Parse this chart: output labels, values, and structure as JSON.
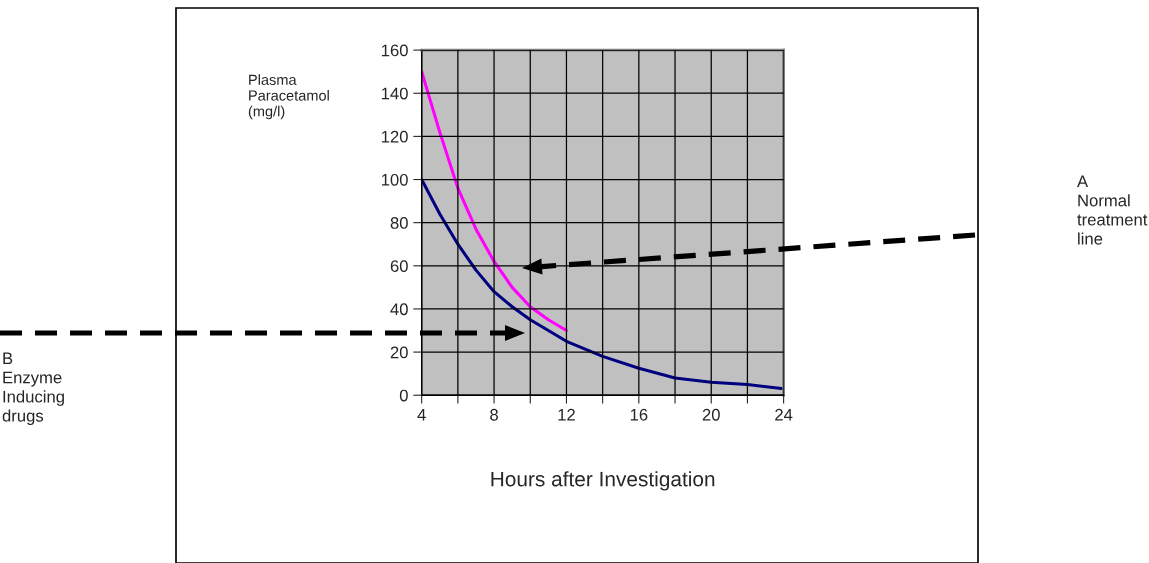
{
  "chart_data": {
    "type": "line",
    "xlabel": "Hours after Investigation",
    "ylabel": "Plasma\nParacetamol\n(mg/l)",
    "series": [
      {
        "color": "#ff00ff",
        "x": [
          4,
          5,
          6,
          7,
          8,
          9,
          10,
          11,
          12
        ],
        "values": [
          150,
          122,
          96,
          77,
          62,
          50,
          41,
          35,
          30
        ]
      },
      {
        "color": "#000080",
        "x": [
          4,
          5,
          6,
          7,
          8,
          9,
          10,
          11,
          12,
          14,
          16,
          18,
          20,
          22,
          24
        ],
        "values": [
          100,
          84,
          70,
          58,
          48,
          41,
          35,
          30,
          25,
          18,
          12.5,
          8,
          6,
          5,
          3
        ]
      }
    ],
    "xlim": [
      4,
      24
    ],
    "xticks": [
      4,
      {
        "value": 6,
        "label": null
      },
      8,
      {
        "value": 10,
        "label": null
      },
      12,
      {
        "value": 14,
        "label": null
      },
      16,
      {
        "value": 18,
        "label": null
      },
      20,
      {
        "value": 22,
        "label": null
      },
      24
    ],
    "ylim": [
      0,
      160
    ],
    "yticks": [
      0,
      20,
      40,
      60,
      80,
      100,
      120,
      140,
      160
    ],
    "grid": true,
    "annotations": [
      "A\nNormal\ntreatment\nline",
      "B\nEnzyme\nInducing\ndrugs"
    ]
  }
}
